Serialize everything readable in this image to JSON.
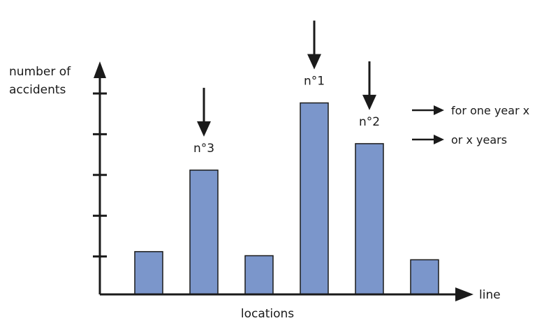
{
  "chart_data": {
    "type": "bar",
    "title": "",
    "ylabel_line1": "number of",
    "ylabel_line2": "accidents",
    "xlabel": "locations",
    "x_axis_end_label": "line",
    "categories": [
      "",
      "",
      "",
      "",
      "",
      ""
    ],
    "values": [
      1.05,
      3.05,
      0.95,
      4.7,
      3.7,
      0.85
    ],
    "ylim": [
      0,
      5
    ],
    "y_ticks": [
      1,
      2,
      3,
      4,
      5
    ],
    "grid": false,
    "bar_color": "#7b96cb",
    "bar_outline": "#1a1a1a",
    "rank_markers": [
      {
        "bar_index": 3,
        "label": "n°1"
      },
      {
        "bar_index": 4,
        "label": "n°2"
      },
      {
        "bar_index": 1,
        "label": "n°3"
      }
    ],
    "annotations": [
      {
        "label": "for one year x"
      },
      {
        "label": "or x years"
      }
    ]
  }
}
